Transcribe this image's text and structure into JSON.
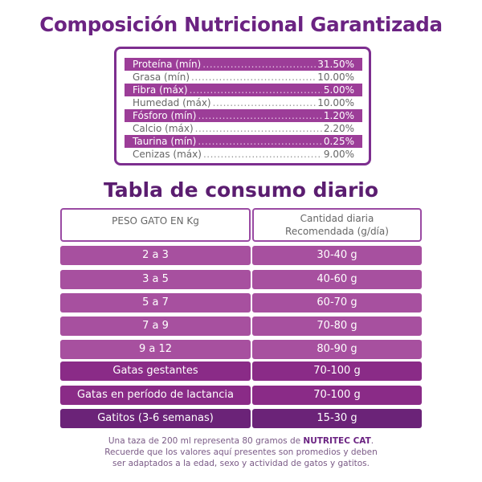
{
  "title": "Composición Nutricional Garantizada",
  "nutrition": [
    {
      "label": "Proteína (mín)",
      "value": "31.50%"
    },
    {
      "label": "Grasa (mín)",
      "value": "10.00%"
    },
    {
      "label": "Fibra (máx)",
      "value": "5.00%"
    },
    {
      "label": "Humedad (máx)",
      "value": "10.00%"
    },
    {
      "label": "Fósforo (mín)",
      "value": "1.20%"
    },
    {
      "label": "Calcio (máx)",
      "value": "2.20%"
    },
    {
      "label": "Taurina (mín)",
      "value": "0.25%"
    },
    {
      "label": "Cenizas (máx)",
      "value": "9.00%"
    }
  ],
  "table": {
    "title": "Tabla de consumo diario",
    "header": {
      "weight": "PESO GATO EN Kg",
      "amount_line1": "Cantidad diaria",
      "amount_line2": "Recomendada (g/día)"
    },
    "rows": [
      {
        "weight": "2 a 3",
        "amount": "30-40 g"
      },
      {
        "weight": "3 a 5",
        "amount": "40-60 g"
      },
      {
        "weight": "5 a 7",
        "amount": "60-70 g"
      },
      {
        "weight": "7 a 9",
        "amount": "70-80 g"
      },
      {
        "weight": "9 a 12",
        "amount": "80-90 g"
      },
      {
        "weight": "Gatas gestantes",
        "amount": "70-100 g"
      },
      {
        "weight": "Gatas en período de lactancia",
        "amount": "70-100 g"
      },
      {
        "weight": "Gatitos (3-6 semanas)",
        "amount": "15-30 g"
      }
    ]
  },
  "footnote": {
    "line1_prefix": "Una taza de 200 ml representa 80 gramos de ",
    "brand": "NUTRITEC CAT",
    "line1_suffix": ".",
    "line2": "Recuerde que los valores aquí presentes son promedios y deben",
    "line3": "ser  adaptados a la edad, sexo y actividad de gatos y gatitos."
  },
  "colors": {
    "title": "#6b2382",
    "band": "#9c3d98",
    "light_row": "#a7509f",
    "mid_row": "#8a2b87",
    "dark_row": "#6b2378"
  }
}
